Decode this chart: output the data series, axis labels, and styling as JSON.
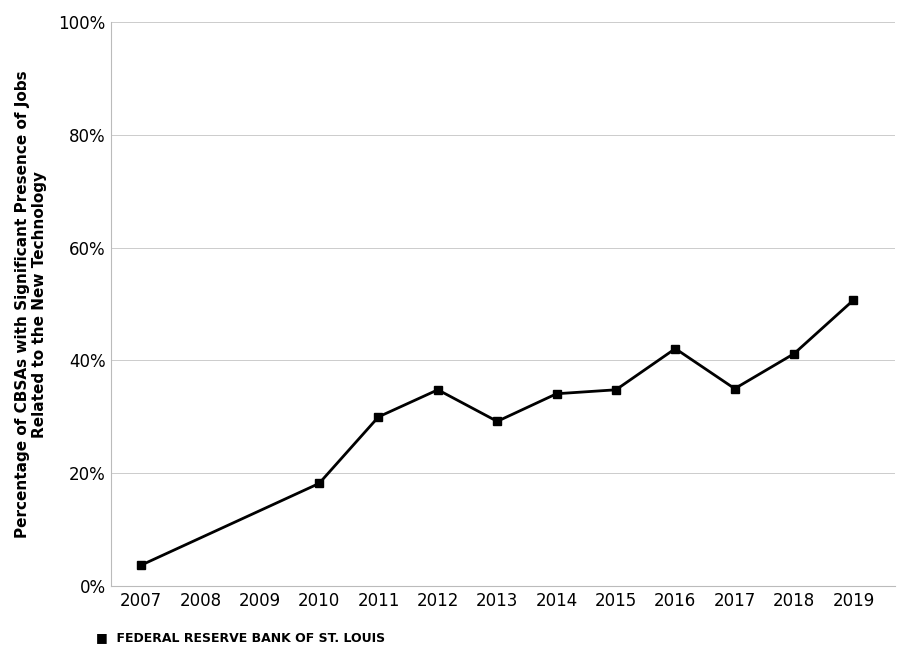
{
  "years": [
    2007,
    2010,
    2011,
    2012,
    2013,
    2014,
    2015,
    2016,
    2017,
    2018,
    2019
  ],
  "values": [
    0.037,
    0.182,
    0.3,
    0.348,
    0.292,
    0.341,
    0.348,
    0.421,
    0.35,
    0.412,
    0.507
  ],
  "xtick_years": [
    2007,
    2008,
    2009,
    2010,
    2011,
    2012,
    2013,
    2014,
    2015,
    2016,
    2017,
    2018,
    2019
  ],
  "xtick_labels": [
    "2007",
    "2008",
    "2009",
    "2010",
    "2011",
    "2012",
    "2013",
    "2014",
    "2015",
    "2016",
    "2017",
    "2018",
    "2019"
  ],
  "ylabel": "Percentage of CBSAs with Significant Presence of Jobs\nRelated to the New Technology",
  "yticks": [
    0.0,
    0.2,
    0.4,
    0.6,
    0.8,
    1.0
  ],
  "ytick_labels": [
    "0%",
    "20%",
    "40%",
    "60%",
    "80%",
    "100%"
  ],
  "line_color": "#000000",
  "marker": "s",
  "marker_size": 6,
  "line_width": 2.0,
  "footer_text": "FEDERAL RESERVE BANK OF ST. LOUIS",
  "background_color": "#ffffff",
  "ylim": [
    0.0,
    1.0
  ],
  "xlim": [
    2006.5,
    2019.7
  ]
}
